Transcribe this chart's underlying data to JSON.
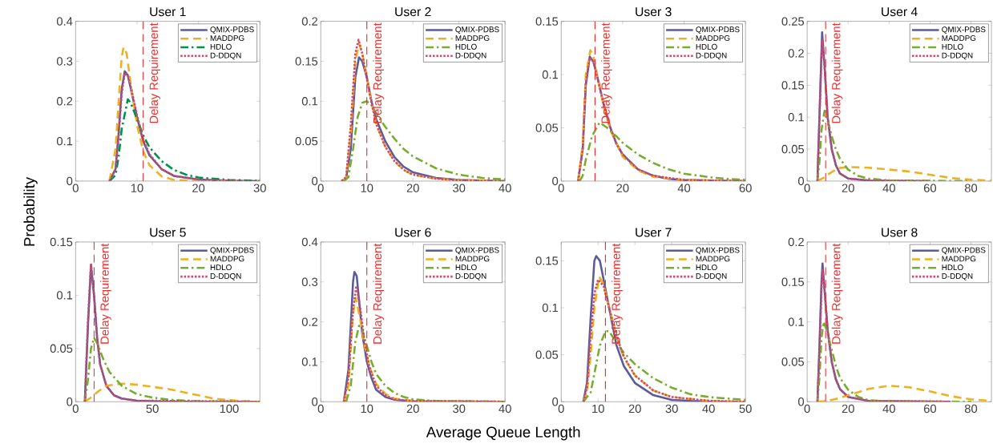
{
  "chart_data": [
    {
      "type": "line",
      "title": "User 1",
      "ylabel": "Probability",
      "xlim": [
        0,
        30
      ],
      "ylim": [
        0,
        0.4
      ],
      "xticks": [
        0,
        10,
        20,
        30
      ],
      "yticks": [
        0,
        0.1,
        0.2,
        0.3,
        0.4
      ],
      "legend": "top right",
      "grid": false,
      "ref_lines": [
        {
          "axis": "x",
          "value": 11,
          "label": "Delay Requirement",
          "color": "#f03030",
          "line_style": "dashed"
        }
      ],
      "series": [
        {
          "name": "QMIX-PDBS",
          "color": "#5b5b9b",
          "line_style": "solid",
          "x": [
            5.5,
            6.5,
            7,
            7.5,
            8,
            8.5,
            9,
            10,
            11,
            12,
            14,
            16,
            20,
            25,
            30
          ],
          "values": [
            0,
            0.03,
            0.12,
            0.23,
            0.275,
            0.265,
            0.23,
            0.16,
            0.1,
            0.065,
            0.03,
            0.013,
            0.004,
            0.001,
            0
          ]
        },
        {
          "name": "MADDPG",
          "color": "#edb120",
          "line_style": "dashed",
          "x": [
            5.5,
            6.5,
            7,
            7.5,
            7.8,
            8.3,
            9,
            10,
            11,
            12,
            14,
            16,
            20,
            30
          ],
          "values": [
            0,
            0.08,
            0.2,
            0.31,
            0.335,
            0.32,
            0.24,
            0.14,
            0.075,
            0.04,
            0.012,
            0.003,
            0,
            0
          ]
        },
        {
          "name": "HDLO",
          "color": "#00914c",
          "line_style": "dashdot",
          "x": [
            5.5,
            6.5,
            7,
            7.5,
            8.5,
            9,
            10,
            11,
            12,
            14,
            16,
            18,
            20,
            25,
            30
          ],
          "values": [
            0,
            0.015,
            0.06,
            0.13,
            0.205,
            0.195,
            0.155,
            0.115,
            0.085,
            0.05,
            0.028,
            0.016,
            0.009,
            0.003,
            0.001
          ]
        },
        {
          "name": "D-DDQN",
          "color": "#d1486a",
          "line_style": "dotted",
          "x": [
            5.5,
            6.5,
            7,
            7.5,
            8,
            8.5,
            9,
            10,
            11,
            12,
            14,
            16,
            20,
            25,
            30
          ],
          "values": [
            0,
            0.03,
            0.11,
            0.22,
            0.27,
            0.265,
            0.235,
            0.165,
            0.105,
            0.068,
            0.03,
            0.013,
            0.004,
            0.001,
            0
          ]
        }
      ]
    },
    {
      "type": "line",
      "title": "User 2",
      "xlim": [
        0,
        40
      ],
      "ylim": [
        0,
        0.2
      ],
      "xticks": [
        0,
        10,
        20,
        30,
        40
      ],
      "yticks": [
        0,
        0.05,
        0.1,
        0.15,
        0.2
      ],
      "legend": "top right",
      "grid": false,
      "ref_lines": [
        {
          "axis": "x",
          "value": 10,
          "label": "Delay Requirement",
          "color": "#f03030",
          "line_style": "dashed"
        }
      ],
      "series": [
        {
          "name": "QMIX-PDBS",
          "color": "#5b5b9b",
          "line_style": "solid",
          "x": [
            4.5,
            5.5,
            6.5,
            7.5,
            8.3,
            9,
            10,
            11,
            12,
            14,
            16,
            18,
            20,
            25,
            30,
            40
          ],
          "values": [
            0,
            0.003,
            0.04,
            0.13,
            0.155,
            0.15,
            0.13,
            0.1,
            0.078,
            0.05,
            0.03,
            0.018,
            0.011,
            0.004,
            0.0015,
            0
          ]
        },
        {
          "name": "MADDPG",
          "color": "#edb120",
          "line_style": "dashed",
          "x": [
            4.5,
            5.5,
            6.5,
            7.5,
            8.3,
            9,
            10,
            11,
            12,
            14,
            16,
            18,
            20,
            25,
            30,
            40
          ],
          "values": [
            0,
            0.004,
            0.06,
            0.15,
            0.172,
            0.16,
            0.13,
            0.1,
            0.072,
            0.043,
            0.025,
            0.014,
            0.008,
            0.003,
            0.001,
            0
          ]
        },
        {
          "name": "HDLO",
          "color": "#77ac30",
          "line_style": "dashdot",
          "x": [
            5,
            6,
            7,
            8,
            9,
            10,
            11,
            12,
            14,
            16,
            18,
            20,
            25,
            30,
            35,
            40
          ],
          "values": [
            0,
            0.005,
            0.04,
            0.08,
            0.098,
            0.1,
            0.095,
            0.085,
            0.068,
            0.053,
            0.04,
            0.031,
            0.016,
            0.008,
            0.004,
            0.002
          ]
        },
        {
          "name": "D-DDQN",
          "color": "#d1486a",
          "line_style": "dotted",
          "x": [
            4.5,
            5.5,
            6.5,
            7.5,
            8.2,
            9,
            10,
            11,
            12,
            14,
            16,
            18,
            20,
            25,
            30,
            40
          ],
          "values": [
            0,
            0.005,
            0.07,
            0.16,
            0.177,
            0.16,
            0.128,
            0.098,
            0.072,
            0.043,
            0.025,
            0.014,
            0.008,
            0.003,
            0.001,
            0
          ]
        }
      ]
    },
    {
      "type": "line",
      "title": "User 3",
      "xlim": [
        0,
        60
      ],
      "ylim": [
        0,
        0.15
      ],
      "xticks": [
        0,
        20,
        40,
        60
      ],
      "yticks": [
        0,
        0.05,
        0.1,
        0.15
      ],
      "legend": "top right",
      "grid": false,
      "ref_lines": [
        {
          "axis": "x",
          "value": 11,
          "label": "Delay Requirement",
          "color": "#f03030",
          "line_style": "dashed"
        }
      ],
      "series": [
        {
          "name": "QMIX-PDBS",
          "color": "#5b5b9b",
          "line_style": "solid",
          "x": [
            5.5,
            7,
            8,
            9.3,
            10.5,
            12,
            14,
            16,
            18,
            20,
            25,
            30,
            35,
            40,
            60
          ],
          "values": [
            0,
            0.03,
            0.09,
            0.117,
            0.112,
            0.095,
            0.07,
            0.05,
            0.035,
            0.025,
            0.011,
            0.005,
            0.002,
            0.001,
            0
          ]
        },
        {
          "name": "MADDPG",
          "color": "#edb120",
          "line_style": "dashed",
          "x": [
            5.5,
            7,
            8,
            9.5,
            10.5,
            12,
            14,
            16,
            20,
            25,
            30,
            40,
            60
          ],
          "values": [
            0,
            0.035,
            0.1,
            0.123,
            0.117,
            0.095,
            0.068,
            0.048,
            0.023,
            0.01,
            0.004,
            0.001,
            0
          ]
        },
        {
          "name": "HDLO",
          "color": "#77ac30",
          "line_style": "dashdot",
          "x": [
            6,
            7,
            8,
            10,
            12.5,
            15,
            18,
            20,
            25,
            30,
            35,
            40,
            50,
            60
          ],
          "values": [
            0,
            0.005,
            0.02,
            0.042,
            0.055,
            0.05,
            0.042,
            0.036,
            0.025,
            0.017,
            0.011,
            0.007,
            0.003,
            0.001
          ]
        },
        {
          "name": "D-DDQN",
          "color": "#d1486a",
          "line_style": "dotted",
          "x": [
            5.5,
            7,
            8,
            9.3,
            10.5,
            12,
            14,
            16,
            18,
            20,
            25,
            30,
            40,
            60
          ],
          "values": [
            0,
            0.03,
            0.092,
            0.116,
            0.112,
            0.095,
            0.07,
            0.05,
            0.035,
            0.025,
            0.011,
            0.005,
            0.001,
            0
          ]
        }
      ]
    },
    {
      "type": "line",
      "title": "User 4",
      "xlim": [
        0,
        90
      ],
      "ylim": [
        0,
        0.25
      ],
      "xticks": [
        0,
        20,
        40,
        60,
        80
      ],
      "yticks": [
        0,
        0.05,
        0.1,
        0.15,
        0.2,
        0.25
      ],
      "legend": "top right",
      "grid": false,
      "ref_lines": [
        {
          "axis": "x",
          "value": 9,
          "label": "Delay Requirement",
          "color": "#f03030",
          "line_style": "dashed"
        }
      ],
      "series": [
        {
          "name": "QMIX-PDBS",
          "color": "#5b5b9b",
          "line_style": "solid",
          "x": [
            5,
            6,
            7.3,
            8.5,
            10,
            12,
            14,
            16,
            20,
            30,
            60
          ],
          "values": [
            0,
            0.1,
            0.233,
            0.18,
            0.1,
            0.05,
            0.025,
            0.012,
            0.004,
            0.001,
            0
          ]
        },
        {
          "name": "MADDPG",
          "color": "#edb120",
          "line_style": "dashed",
          "x": [
            5,
            8,
            10,
            15,
            20,
            30,
            40,
            50,
            60,
            70,
            80,
            90
          ],
          "values": [
            0,
            0.005,
            0.01,
            0.02,
            0.022,
            0.021,
            0.018,
            0.015,
            0.01,
            0.005,
            0.002,
            0.001
          ]
        },
        {
          "name": "HDLO",
          "color": "#77ac30",
          "line_style": "dashdot",
          "x": [
            5,
            6,
            7,
            8.5,
            10,
            12,
            14,
            16,
            20,
            25,
            30,
            40,
            80
          ],
          "values": [
            0,
            0.03,
            0.08,
            0.11,
            0.095,
            0.07,
            0.05,
            0.035,
            0.018,
            0.008,
            0.004,
            0.001,
            0
          ]
        },
        {
          "name": "D-DDQN",
          "color": "#d1486a",
          "line_style": "dotted",
          "x": [
            5,
            6,
            7.3,
            8.5,
            10,
            12,
            14,
            16,
            20,
            30,
            60
          ],
          "values": [
            0,
            0.1,
            0.22,
            0.18,
            0.1,
            0.05,
            0.025,
            0.012,
            0.004,
            0.001,
            0
          ]
        }
      ]
    },
    {
      "type": "line",
      "title": "User 5",
      "xlim": [
        0,
        120
      ],
      "ylim": [
        0,
        0.15
      ],
      "xticks": [
        0,
        50,
        100
      ],
      "yticks": [
        0,
        0.05,
        0.1,
        0.15
      ],
      "legend": "top right",
      "grid": false,
      "ref_lines": [
        {
          "axis": "x",
          "value": 12,
          "label": "Delay Requirement",
          "color": "#f03030",
          "line_style": "dashed"
        }
      ],
      "series": [
        {
          "name": "QMIX-PDBS",
          "color": "#5b5b9b",
          "line_style": "solid",
          "x": [
            6,
            8,
            10,
            12,
            14,
            16,
            20,
            25,
            30,
            40,
            60,
            120
          ],
          "values": [
            0,
            0.07,
            0.128,
            0.1,
            0.06,
            0.035,
            0.015,
            0.006,
            0.003,
            0.001,
            0,
            0
          ]
        },
        {
          "name": "MADDPG",
          "color": "#edb120",
          "line_style": "dashed",
          "x": [
            6,
            10,
            15,
            20,
            30,
            40,
            50,
            60,
            70,
            80,
            90,
            100,
            110,
            120
          ],
          "values": [
            0,
            0.004,
            0.01,
            0.015,
            0.017,
            0.016,
            0.014,
            0.012,
            0.009,
            0.006,
            0.003,
            0.0015,
            0.0005,
            0
          ]
        },
        {
          "name": "HDLO",
          "color": "#77ac30",
          "line_style": "dashdot",
          "x": [
            6,
            8,
            10,
            12,
            14,
            18,
            22,
            30,
            40,
            50,
            60,
            80,
            120
          ],
          "values": [
            0,
            0.02,
            0.05,
            0.06,
            0.055,
            0.04,
            0.028,
            0.015,
            0.007,
            0.004,
            0.002,
            0.0005,
            0
          ]
        },
        {
          "name": "D-DDQN",
          "color": "#d1486a",
          "line_style": "dotted",
          "x": [
            6,
            8,
            10,
            12,
            14,
            16,
            20,
            25,
            30,
            40,
            120
          ],
          "values": [
            0,
            0.075,
            0.13,
            0.1,
            0.06,
            0.035,
            0.015,
            0.006,
            0.003,
            0.001,
            0
          ]
        }
      ]
    },
    {
      "type": "line",
      "title": "User 6",
      "xlabel": "Average Queue Length",
      "xlim": [
        0,
        40
      ],
      "ylim": [
        0,
        0.4
      ],
      "xticks": [
        0,
        10,
        20,
        30,
        40
      ],
      "yticks": [
        0,
        0.1,
        0.2,
        0.3,
        0.4
      ],
      "legend": "top right",
      "grid": false,
      "ref_lines": [
        {
          "axis": "x",
          "value": 10,
          "label": "Delay Requirement",
          "color": "#f03030",
          "line_style": "dashed"
        }
      ],
      "series": [
        {
          "name": "QMIX-PDBS",
          "color": "#5b5b9b",
          "line_style": "solid",
          "x": [
            5,
            6,
            7,
            7.3,
            7.8,
            8.5,
            9,
            10,
            11,
            12,
            14,
            16,
            20,
            40
          ],
          "values": [
            0,
            0.08,
            0.3,
            0.325,
            0.315,
            0.23,
            0.17,
            0.1,
            0.06,
            0.03,
            0.012,
            0.005,
            0.001,
            0
          ]
        },
        {
          "name": "MADDPG",
          "color": "#edb120",
          "line_style": "dashed",
          "x": [
            5,
            6,
            7,
            7.6,
            8.5,
            9.5,
            10.5,
            12,
            14,
            16,
            20,
            40
          ],
          "values": [
            0,
            0.04,
            0.22,
            0.26,
            0.21,
            0.14,
            0.09,
            0.045,
            0.02,
            0.008,
            0.002,
            0
          ]
        },
        {
          "name": "HDLO",
          "color": "#77ac30",
          "line_style": "dashdot",
          "x": [
            5.5,
            6.5,
            7.5,
            8.3,
            9,
            10,
            11,
            12,
            14,
            16,
            18,
            20,
            25,
            40
          ],
          "values": [
            0,
            0.04,
            0.15,
            0.19,
            0.18,
            0.14,
            0.1,
            0.07,
            0.04,
            0.022,
            0.012,
            0.006,
            0.002,
            0
          ]
        },
        {
          "name": "D-DDQN",
          "color": "#d1486a",
          "line_style": "dotted",
          "x": [
            5,
            6,
            7,
            7.7,
            8.5,
            9.5,
            10.5,
            12,
            14,
            16,
            20,
            40
          ],
          "values": [
            0,
            0.06,
            0.23,
            0.29,
            0.24,
            0.15,
            0.09,
            0.04,
            0.016,
            0.006,
            0.002,
            0
          ]
        }
      ]
    },
    {
      "type": "line",
      "title": "User 7",
      "xlim": [
        0,
        50
      ],
      "ylim": [
        0,
        0.17
      ],
      "xticks": [
        0,
        10,
        20,
        30,
        40,
        50
      ],
      "yticks": [
        0,
        0.05,
        0.1,
        0.15
      ],
      "legend": "top right",
      "grid": false,
      "ref_lines": [
        {
          "axis": "x",
          "value": 12,
          "label": "Delay Requirement",
          "color": "#f03030",
          "line_style": "dashed"
        }
      ],
      "series": [
        {
          "name": "QMIX-PDBS",
          "color": "#5b5b9b",
          "line_style": "solid",
          "x": [
            6,
            7,
            8,
            9,
            9.5,
            10.5,
            11.5,
            13,
            15,
            17,
            20,
            25,
            30,
            40,
            50
          ],
          "values": [
            0,
            0.02,
            0.09,
            0.15,
            0.155,
            0.15,
            0.13,
            0.1,
            0.06,
            0.038,
            0.02,
            0.007,
            0.002,
            0,
            0
          ]
        },
        {
          "name": "MADDPG",
          "color": "#edb120",
          "line_style": "dashed",
          "x": [
            6,
            7,
            8,
            9,
            10.3,
            11.5,
            13,
            15,
            17,
            20,
            25,
            30,
            40,
            50
          ],
          "values": [
            0,
            0.01,
            0.05,
            0.1,
            0.133,
            0.125,
            0.1,
            0.07,
            0.047,
            0.028,
            0.012,
            0.005,
            0.001,
            0
          ]
        },
        {
          "name": "HDLO",
          "color": "#77ac30",
          "line_style": "dashdot",
          "x": [
            6,
            8,
            9,
            10.5,
            12,
            13,
            15,
            17,
            20,
            25,
            30,
            35,
            40,
            50
          ],
          "values": [
            0,
            0.01,
            0.03,
            0.06,
            0.075,
            0.075,
            0.063,
            0.052,
            0.04,
            0.025,
            0.015,
            0.008,
            0.005,
            0.002
          ]
        },
        {
          "name": "D-DDQN",
          "color": "#d1486a",
          "line_style": "dotted",
          "x": [
            6,
            7,
            8,
            9,
            10,
            11.5,
            13,
            15,
            17,
            20,
            25,
            30,
            40,
            50
          ],
          "values": [
            0,
            0.015,
            0.07,
            0.115,
            0.13,
            0.123,
            0.1,
            0.07,
            0.048,
            0.028,
            0.012,
            0.005,
            0.001,
            0
          ]
        }
      ]
    },
    {
      "type": "line",
      "title": "User 8",
      "xlim": [
        0,
        90
      ],
      "ylim": [
        0,
        0.2
      ],
      "xticks": [
        0,
        20,
        40,
        60,
        80
      ],
      "yticks": [
        0,
        0.05,
        0.1,
        0.15,
        0.2
      ],
      "legend": "top right",
      "grid": false,
      "ref_lines": [
        {
          "axis": "x",
          "value": 9,
          "label": "Delay Requirement",
          "color": "#f03030",
          "line_style": "dashed"
        }
      ],
      "series": [
        {
          "name": "QMIX-PDBS",
          "color": "#5b5b9b",
          "line_style": "solid",
          "x": [
            5,
            6,
            7,
            7.5,
            8.5,
            10,
            12,
            14,
            16,
            20,
            30,
            70
          ],
          "values": [
            0,
            0.07,
            0.15,
            0.173,
            0.14,
            0.09,
            0.05,
            0.028,
            0.016,
            0.006,
            0.001,
            0
          ]
        },
        {
          "name": "MADDPG",
          "color": "#edb120",
          "line_style": "dashed",
          "x": [
            5,
            10,
            15,
            20,
            30,
            40,
            50,
            60,
            70,
            80,
            90
          ],
          "values": [
            0,
            0.001,
            0.004,
            0.008,
            0.016,
            0.02,
            0.018,
            0.013,
            0.007,
            0.003,
            0.001
          ]
        },
        {
          "name": "HDLO",
          "color": "#77ac30",
          "line_style": "dashdot",
          "x": [
            5,
            6,
            7,
            8,
            9.5,
            12,
            14,
            16,
            20,
            25,
            30,
            40,
            80
          ],
          "values": [
            0,
            0.03,
            0.08,
            0.1,
            0.09,
            0.065,
            0.045,
            0.03,
            0.015,
            0.006,
            0.002,
            0.0005,
            0
          ]
        },
        {
          "name": "D-DDQN",
          "color": "#d1486a",
          "line_style": "dotted",
          "x": [
            5,
            6,
            7,
            7.5,
            8.5,
            10,
            12,
            14,
            16,
            20,
            30,
            70
          ],
          "values": [
            0,
            0.06,
            0.14,
            0.165,
            0.14,
            0.09,
            0.05,
            0.028,
            0.016,
            0.006,
            0.001,
            0
          ]
        }
      ]
    }
  ]
}
